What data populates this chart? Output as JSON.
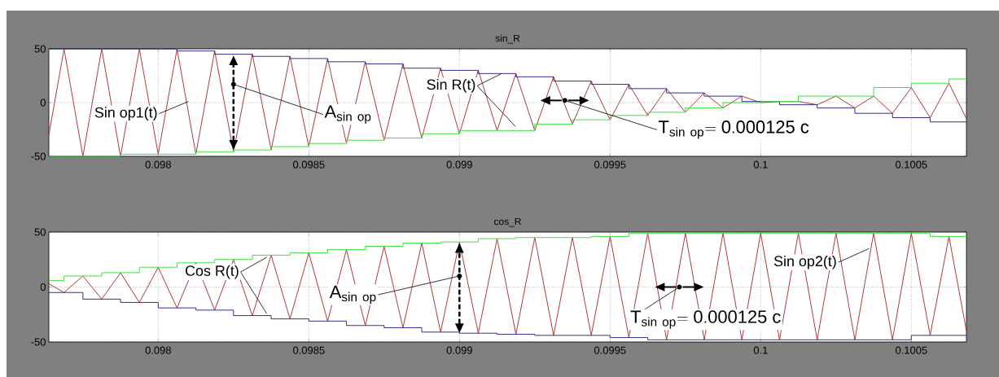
{
  "chart_data": [
    {
      "type": "line",
      "title": "sin_R",
      "xlim": [
        0.097637,
        0.100683
      ],
      "ylim": [
        -50,
        50
      ],
      "grid": true,
      "xticks": [
        0.098,
        0.0985,
        0.099,
        0.0995,
        0.1,
        0.1005
      ],
      "yticks": [
        -50,
        0,
        50
      ],
      "series": [
        {
          "color": "#b03a3a",
          "x": [
            0.097637,
            0.0976875,
            0.09775,
            0.0978125,
            0.097875,
            0.0979375,
            0.098,
            0.0980625,
            0.098125,
            0.0981875,
            0.09825,
            0.0983125,
            0.098375,
            0.0984375,
            0.0985,
            0.0985625,
            0.098625,
            0.0986875,
            0.09875,
            0.0988125,
            0.098875,
            0.0989375,
            0.099,
            0.0990625,
            0.099125,
            0.0991875,
            0.09925,
            0.0993125,
            0.099375,
            0.0994375,
            0.0995,
            0.0995625,
            0.099625,
            0.0996875,
            0.09975,
            0.0998125,
            0.099875,
            0.0999375,
            0.1,
            0.1000625,
            0.100125,
            0.1001875,
            0.10025,
            0.1003125,
            0.100375,
            0.1004375,
            0.1005,
            0.1005625,
            0.100625,
            0.100683
          ],
          "values": [
            -30,
            50,
            -50,
            50,
            -50,
            50,
            -48,
            50,
            -48,
            48,
            -46,
            45,
            -44,
            43,
            -41,
            41,
            -38,
            38,
            -35,
            36,
            -33,
            32,
            -29,
            30,
            -26,
            27,
            -26,
            24,
            -20,
            20,
            -16,
            17,
            -12,
            13,
            -9,
            9,
            -5,
            6,
            0,
            1,
            1,
            -2,
            6,
            -5,
            6,
            -10,
            14,
            -14,
            18,
            -15
          ]
        },
        {
          "type": "step",
          "color": "#30308a",
          "x": [
            0.097637,
            0.0980625,
            0.0981875,
            0.0983125,
            0.0984375,
            0.0985625,
            0.0986875,
            0.0988125,
            0.0989375,
            0.0990625,
            0.0991875,
            0.0993125,
            0.0994375,
            0.0995625,
            0.0996875,
            0.0998125,
            0.0999375,
            0.1000625,
            0.1001875,
            0.1003125,
            0.1004375,
            0.1005625,
            0.100683
          ],
          "values": [
            50,
            48,
            45,
            43,
            41,
            38,
            36,
            32,
            30,
            27,
            24,
            20,
            17,
            13,
            9,
            6,
            1,
            -2,
            -5,
            -10,
            -14,
            -18,
            -18
          ]
        },
        {
          "type": "step",
          "color": "#40e040",
          "x": [
            0.097637,
            0.097875,
            0.098125,
            0.09825,
            0.098375,
            0.0985,
            0.098625,
            0.09875,
            0.098875,
            0.099,
            0.09925,
            0.099375,
            0.0995,
            0.099625,
            0.09975,
            0.099875,
            0.1,
            0.100125,
            0.100375,
            0.1005,
            0.100625,
            0.100683
          ],
          "values": [
            -50,
            -48,
            -46,
            -44,
            -41,
            -38,
            -35,
            -33,
            -29,
            -26,
            -20,
            -16,
            -12,
            -9,
            -5,
            0,
            1,
            6,
            14,
            18,
            22,
            22
          ]
        }
      ],
      "annotations": [
        {
          "text": "Sin op1(t)",
          "x": 0.0981,
          "y": 1
        },
        {
          "text": "\\mathrm{A}_{\\mathrm{sin\\ op}}",
          "x": 0.09825,
          "y": 17
        },
        {
          "text": "Sin R(t)",
          "x": 0.09914,
          "y": 27
        },
        {
          "text": "\\mathrm{T}_{\\mathrm{sin\\ op}}\\mathrm{=0.000125\\ c}",
          "x": 0.09935,
          "y": 2
        }
      ]
    },
    {
      "type": "line",
      "title": "cos_R",
      "xlim": [
        0.097637,
        0.100683
      ],
      "ylim": [
        -50,
        50
      ],
      "grid": true,
      "xticks": [
        0.098,
        0.0985,
        0.099,
        0.0995,
        0.1,
        0.1005
      ],
      "yticks": [
        -50,
        0,
        50
      ],
      "series": [
        {
          "color": "#b03a3a",
          "x": [
            0.097637,
            0.0976875,
            0.09775,
            0.0978125,
            0.097875,
            0.0979375,
            0.098,
            0.0980625,
            0.098125,
            0.0981875,
            0.09825,
            0.0983125,
            0.098375,
            0.0984375,
            0.0985,
            0.0985625,
            0.098625,
            0.0986875,
            0.09875,
            0.0988125,
            0.098875,
            0.0989375,
            0.099,
            0.0990625,
            0.099125,
            0.0991875,
            0.09925,
            0.0993125,
            0.099375,
            0.0994375,
            0.0995,
            0.0995625,
            0.099625,
            0.0996875,
            0.09975,
            0.0998125,
            0.099875,
            0.0999375,
            0.1,
            0.1000625,
            0.100125,
            0.1001875,
            0.10025,
            0.1003125,
            0.100375,
            0.1004375,
            0.1005,
            0.1005625,
            0.100625,
            0.100683
          ],
          "values": [
            3,
            -5,
            10,
            -11,
            13,
            -14,
            18,
            -19,
            22,
            -21,
            25,
            -26,
            29,
            -29,
            31,
            -31,
            34,
            -35,
            37,
            -37,
            40,
            -41,
            41,
            -42,
            44,
            -43,
            45,
            -44,
            45,
            -44,
            46,
            -46,
            49,
            -48,
            49,
            -48,
            49,
            -48,
            49,
            -48,
            49,
            -48,
            49,
            -48,
            49,
            -48,
            49,
            -44,
            46,
            -40
          ]
        },
        {
          "type": "step",
          "color": "#40e040",
          "x": [
            0.097637,
            0.0976875,
            0.0978125,
            0.0979375,
            0.0980625,
            0.0981875,
            0.0983125,
            0.0984375,
            0.0985625,
            0.0986875,
            0.0988125,
            0.0989375,
            0.0990625,
            0.0991875,
            0.0993125,
            0.0994375,
            0.0995625,
            0.0996875,
            0.0998125,
            0.0999375,
            0.1000625,
            0.1001875,
            0.1003125,
            0.1004375,
            0.1005625,
            0.100683
          ],
          "values": [
            6,
            10,
            13,
            18,
            22,
            25,
            29,
            31,
            34,
            37,
            40,
            41,
            44,
            45,
            45,
            46,
            49,
            49,
            49,
            49,
            49,
            49,
            49,
            49,
            46,
            46
          ]
        },
        {
          "type": "step",
          "color": "#30308a",
          "x": [
            0.097637,
            0.09775,
            0.097875,
            0.098,
            0.098125,
            0.09825,
            0.098375,
            0.0985,
            0.098625,
            0.09875,
            0.098875,
            0.099,
            0.099125,
            0.09925,
            0.099375,
            0.0995,
            0.099625,
            0.09975,
            0.099875,
            0.1,
            0.100125,
            0.10025,
            0.100375,
            0.1005,
            0.100625,
            0.100683
          ],
          "values": [
            -5,
            -11,
            -14,
            -19,
            -21,
            -26,
            -29,
            -31,
            -35,
            -37,
            -41,
            -42,
            -43,
            -44,
            -44,
            -46,
            -48,
            -48,
            -48,
            -48,
            -48,
            -48,
            -48,
            -44,
            -44,
            -44
          ]
        }
      ],
      "annotations": [
        {
          "text": "Cos R(t)",
          "x": 0.09836,
          "y": 27
        },
        {
          "text": "\\mathrm{A}_{\\mathrm{sin\\ op}}",
          "x": 0.099,
          "y": 10
        },
        {
          "text": "\\mathrm{T}_{\\mathrm{sin\\ op}}\\mathrm{=0.000125\\ c}",
          "x": 0.09973,
          "y": 0
        },
        {
          "text": "Sin op2(t)",
          "x": 0.10036,
          "y": 35
        }
      ]
    }
  ]
}
